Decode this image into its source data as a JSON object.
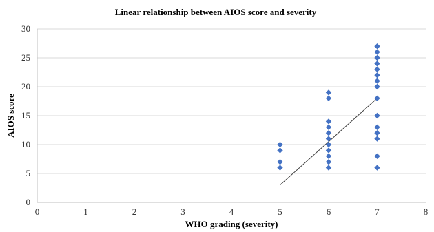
{
  "chart_data": {
    "type": "scatter",
    "title": "Linear relationship between AIOS score and severity",
    "xlabel": "WHO grading (severity)",
    "ylabel": "AIOS score",
    "xlim": [
      0,
      8
    ],
    "ylim": [
      0,
      30
    ],
    "x_ticks": [
      0,
      1,
      2,
      3,
      4,
      5,
      6,
      7,
      8
    ],
    "y_ticks": [
      0,
      5,
      10,
      15,
      20,
      25,
      30
    ],
    "grid": "horizontal",
    "legend": "none",
    "marker": "diamond",
    "colors": {
      "points": "#4472C4",
      "trendline": "#404040",
      "grid": "#d9d9d9"
    },
    "series": [
      {
        "points": [
          {
            "x": 5,
            "y": 6
          },
          {
            "x": 5,
            "y": 7
          },
          {
            "x": 5,
            "y": 9
          },
          {
            "x": 5,
            "y": 10
          },
          {
            "x": 6,
            "y": 6
          },
          {
            "x": 6,
            "y": 7
          },
          {
            "x": 6,
            "y": 8
          },
          {
            "x": 6,
            "y": 9
          },
          {
            "x": 6,
            "y": 10
          },
          {
            "x": 6,
            "y": 11
          },
          {
            "x": 6,
            "y": 12
          },
          {
            "x": 6,
            "y": 13
          },
          {
            "x": 6,
            "y": 14
          },
          {
            "x": 6,
            "y": 18
          },
          {
            "x": 6,
            "y": 19
          },
          {
            "x": 7,
            "y": 6
          },
          {
            "x": 7,
            "y": 8
          },
          {
            "x": 7,
            "y": 11
          },
          {
            "x": 7,
            "y": 12
          },
          {
            "x": 7,
            "y": 13
          },
          {
            "x": 7,
            "y": 15
          },
          {
            "x": 7,
            "y": 18
          },
          {
            "x": 7,
            "y": 20
          },
          {
            "x": 7,
            "y": 21
          },
          {
            "x": 7,
            "y": 22
          },
          {
            "x": 7,
            "y": 23
          },
          {
            "x": 7,
            "y": 24
          },
          {
            "x": 7,
            "y": 25
          },
          {
            "x": 7,
            "y": 26
          },
          {
            "x": 7,
            "y": 27
          }
        ]
      }
    ],
    "trendline": {
      "type": "linear",
      "from": {
        "x": 5,
        "y": 3
      },
      "to": {
        "x": 7,
        "y": 18
      }
    }
  }
}
